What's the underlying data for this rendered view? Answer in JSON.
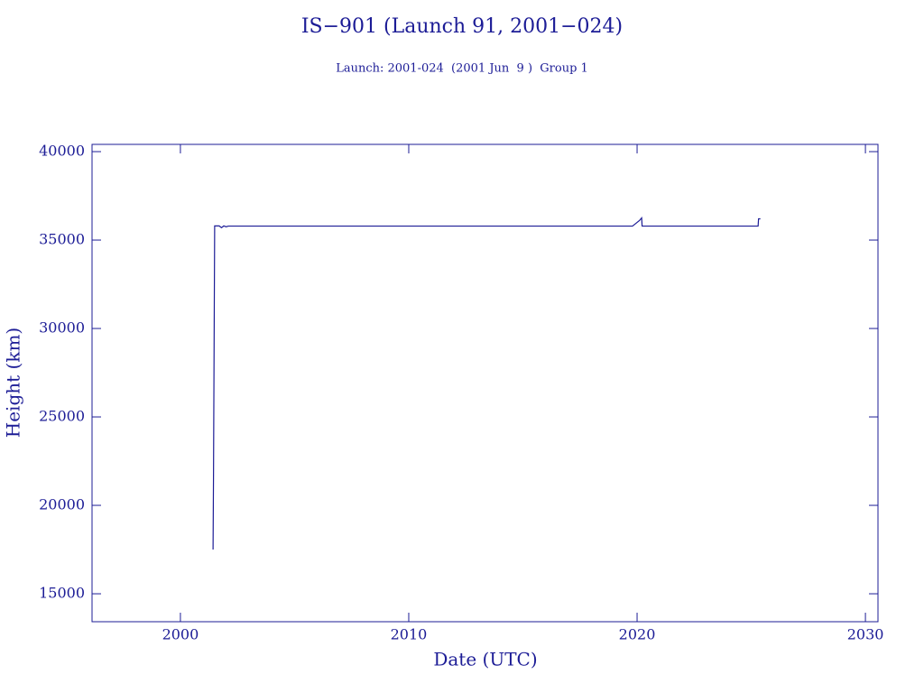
{
  "chart_data": {
    "type": "line",
    "title": "IS−901 (Launch 91, 2001−024)",
    "subtitle": "Launch: 2001-024  (2001 Jun  9 )  Group 1",
    "x_label": "Date (UTC)",
    "y_label": "Height (km)",
    "x": [
      2001.43,
      2001.45,
      2001.5,
      2001.7,
      2001.8,
      2001.9,
      2002.0,
      2002.1,
      2018.2,
      2019.8,
      2020.1,
      2020.2,
      2020.22,
      2025.3,
      2025.32,
      2025.4
    ],
    "series": [
      {
        "color": "#1c1c96",
        "values": [
          17500,
          21800,
          35800,
          35800,
          35700,
          35800,
          35750,
          35790,
          35790,
          35790,
          36100,
          36250,
          35790,
          35790,
          36200,
          36200
        ]
      }
    ],
    "xlim": [
      1996.13,
      2030.55
    ],
    "ylim": [
      13420,
      40410
    ],
    "xticks": [
      2000,
      2010,
      2020,
      2030
    ],
    "yticks": [
      15000,
      20000,
      25000,
      30000,
      35000,
      40000
    ],
    "color": "#1c1c96"
  }
}
